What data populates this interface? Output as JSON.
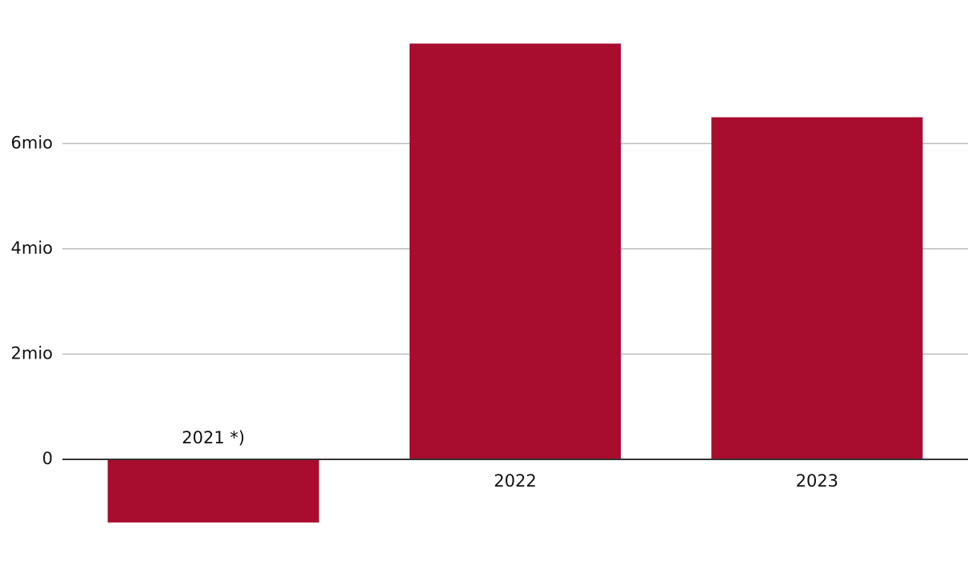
{
  "chart_data": {
    "type": "bar",
    "categories": [
      "2021 *)",
      "2022",
      "2023"
    ],
    "values": [
      -1200000,
      7900000,
      6500000
    ],
    "color": "#a80c2e",
    "ylim": [
      -1500000,
      8500000
    ],
    "yticks": [
      0,
      {
        "value": 2000000,
        "label": "2mio"
      },
      {
        "value": 4000000,
        "label": "4mio"
      },
      {
        "value": 6000000,
        "label": "6mio"
      }
    ],
    "grid": true
  }
}
